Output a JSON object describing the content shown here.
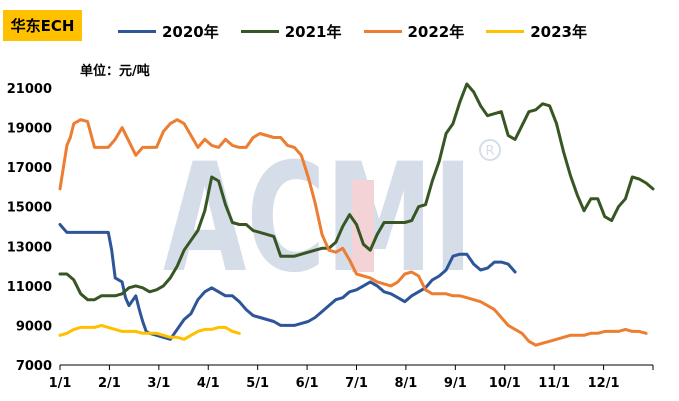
{
  "chart_data": {
    "type": "line",
    "title": "华东ECH",
    "unit": "单位：元/吨",
    "ylim": [
      7000,
      21000
    ],
    "yticks": [
      7000,
      9000,
      11000,
      13000,
      15000,
      17000,
      19000,
      21000
    ],
    "xticks": [
      "1/1",
      "2/1",
      "3/1",
      "4/1",
      "5/1",
      "6/1",
      "7/1",
      "8/1",
      "9/1",
      "10/1",
      "11/1",
      "12/1"
    ],
    "x_unit": "week_of_year",
    "watermark": "ACMI",
    "legend_position": "top",
    "grid": false,
    "colors": {
      "2020": "#2E5597",
      "2021": "#375623",
      "2022": "#ED7D31",
      "2023": "#FFC000"
    },
    "series": [
      {
        "name": "2020年",
        "color": "#2E5597",
        "points": [
          [
            0,
            14100
          ],
          [
            0.5,
            13900
          ],
          [
            1,
            13700
          ],
          [
            2,
            13700
          ],
          [
            3,
            13700
          ],
          [
            4,
            13700
          ],
          [
            5,
            13700
          ],
          [
            6,
            13700
          ],
          [
            7,
            13700
          ],
          [
            7.5,
            12800
          ],
          [
            8,
            11400
          ],
          [
            9,
            11200
          ],
          [
            9.5,
            10400
          ],
          [
            10,
            10000
          ],
          [
            11,
            10500
          ],
          [
            11.5,
            9800
          ],
          [
            12,
            9200
          ],
          [
            12.5,
            8700
          ],
          [
            13,
            8600
          ],
          [
            14,
            8500
          ],
          [
            15,
            8400
          ],
          [
            16,
            8300
          ],
          [
            17,
            8800
          ],
          [
            18,
            9300
          ],
          [
            19,
            9600
          ],
          [
            20,
            10300
          ],
          [
            21,
            10700
          ],
          [
            22,
            10900
          ],
          [
            23,
            10700
          ],
          [
            24,
            10500
          ],
          [
            25,
            10500
          ],
          [
            26,
            10200
          ],
          [
            27,
            9800
          ],
          [
            28,
            9500
          ],
          [
            29,
            9400
          ],
          [
            30,
            9300
          ],
          [
            31,
            9200
          ],
          [
            32,
            9000
          ],
          [
            33,
            9000
          ],
          [
            34,
            9000
          ],
          [
            35,
            9100
          ],
          [
            36,
            9200
          ],
          [
            37,
            9400
          ],
          [
            38,
            9700
          ],
          [
            39,
            10000
          ],
          [
            40,
            10300
          ],
          [
            41,
            10400
          ],
          [
            42,
            10700
          ],
          [
            43,
            10800
          ],
          [
            44,
            11000
          ],
          [
            45,
            11200
          ],
          [
            46,
            11000
          ],
          [
            47,
            10700
          ],
          [
            48,
            10600
          ],
          [
            49,
            10400
          ],
          [
            50,
            10200
          ],
          [
            51,
            10500
          ],
          [
            52,
            10700
          ],
          [
            53,
            10900
          ],
          [
            54,
            11300
          ],
          [
            55,
            11500
          ],
          [
            56,
            11800
          ],
          [
            57,
            12500
          ],
          [
            58,
            12600
          ],
          [
            59,
            12600
          ],
          [
            60,
            12100
          ],
          [
            61,
            11800
          ],
          [
            62,
            11900
          ],
          [
            63,
            12200
          ],
          [
            64,
            12200
          ],
          [
            65,
            12100
          ],
          [
            66,
            11700
          ]
        ]
      },
      {
        "name": "2021年",
        "color": "#375623",
        "points": [
          [
            0,
            11600
          ],
          [
            1,
            11600
          ],
          [
            2,
            11300
          ],
          [
            3,
            10600
          ],
          [
            4,
            10300
          ],
          [
            5,
            10300
          ],
          [
            6,
            10500
          ],
          [
            7,
            10500
          ],
          [
            8,
            10500
          ],
          [
            9,
            10600
          ],
          [
            10,
            10900
          ],
          [
            11,
            11000
          ],
          [
            12,
            10900
          ],
          [
            13,
            10700
          ],
          [
            14,
            10800
          ],
          [
            15,
            11000
          ],
          [
            16,
            11400
          ],
          [
            17,
            12000
          ],
          [
            18,
            12800
          ],
          [
            19,
            13300
          ],
          [
            20,
            13800
          ],
          [
            21,
            14800
          ],
          [
            22,
            16500
          ],
          [
            23,
            16300
          ],
          [
            24,
            15100
          ],
          [
            25,
            14200
          ],
          [
            26,
            14100
          ],
          [
            27,
            14100
          ],
          [
            28,
            13800
          ],
          [
            29,
            13700
          ],
          [
            30,
            13600
          ],
          [
            31,
            13500
          ],
          [
            32,
            12500
          ],
          [
            33,
            12500
          ],
          [
            34,
            12500
          ],
          [
            35,
            12600
          ],
          [
            36,
            12700
          ],
          [
            37,
            12800
          ],
          [
            38,
            12900
          ],
          [
            39,
            12900
          ],
          [
            40,
            13200
          ],
          [
            41,
            14000
          ],
          [
            42,
            14600
          ],
          [
            43,
            14100
          ],
          [
            44,
            13100
          ],
          [
            45,
            12800
          ],
          [
            46,
            13600
          ],
          [
            47,
            14200
          ],
          [
            48,
            14200
          ],
          [
            49,
            14200
          ],
          [
            50,
            14200
          ],
          [
            51,
            14300
          ],
          [
            52,
            15000
          ],
          [
            53,
            15100
          ],
          [
            54,
            16300
          ],
          [
            55,
            17300
          ],
          [
            56,
            18700
          ],
          [
            57,
            19200
          ],
          [
            58,
            20300
          ],
          [
            59,
            21200
          ],
          [
            60,
            20800
          ],
          [
            61,
            20100
          ],
          [
            62,
            19600
          ],
          [
            63,
            19700
          ],
          [
            64,
            19800
          ],
          [
            65,
            18600
          ],
          [
            66,
            18400
          ],
          [
            67,
            19100
          ],
          [
            68,
            19800
          ],
          [
            69,
            19900
          ],
          [
            70,
            20200
          ],
          [
            71,
            20100
          ],
          [
            72,
            19200
          ],
          [
            73,
            17800
          ],
          [
            74,
            16600
          ],
          [
            75,
            15600
          ],
          [
            76,
            14800
          ],
          [
            77,
            15400
          ],
          [
            78,
            15400
          ],
          [
            79,
            14500
          ],
          [
            80,
            14300
          ],
          [
            81,
            15000
          ],
          [
            82,
            15400
          ],
          [
            83,
            16500
          ],
          [
            84,
            16400
          ],
          [
            85,
            16200
          ],
          [
            86,
            15900
          ]
        ]
      },
      {
        "name": "2022年",
        "color": "#ED7D31",
        "points": [
          [
            0,
            15900
          ],
          [
            1,
            18100
          ],
          [
            1.5,
            18500
          ],
          [
            2,
            19200
          ],
          [
            3,
            19400
          ],
          [
            4,
            19300
          ],
          [
            5,
            18000
          ],
          [
            6,
            18000
          ],
          [
            7,
            18000
          ],
          [
            8,
            18400
          ],
          [
            9,
            19000
          ],
          [
            10,
            18300
          ],
          [
            11,
            17600
          ],
          [
            12,
            18000
          ],
          [
            13,
            18000
          ],
          [
            14,
            18000
          ],
          [
            15,
            18800
          ],
          [
            16,
            19200
          ],
          [
            17,
            19400
          ],
          [
            18,
            19200
          ],
          [
            19,
            18600
          ],
          [
            20,
            18000
          ],
          [
            21,
            18400
          ],
          [
            22,
            18100
          ],
          [
            23,
            18000
          ],
          [
            24,
            18400
          ],
          [
            25,
            18100
          ],
          [
            26,
            18000
          ],
          [
            27,
            18000
          ],
          [
            28,
            18500
          ],
          [
            29,
            18700
          ],
          [
            30,
            18600
          ],
          [
            31,
            18500
          ],
          [
            32,
            18500
          ],
          [
            33,
            18100
          ],
          [
            34,
            18000
          ],
          [
            35,
            17600
          ],
          [
            36,
            16500
          ],
          [
            37,
            15200
          ],
          [
            38,
            13600
          ],
          [
            39,
            12800
          ],
          [
            40,
            12700
          ],
          [
            41,
            12900
          ],
          [
            42,
            12300
          ],
          [
            43,
            11600
          ],
          [
            44,
            11500
          ],
          [
            45,
            11400
          ],
          [
            46,
            11200
          ],
          [
            47,
            11100
          ],
          [
            48,
            11000
          ],
          [
            49,
            11200
          ],
          [
            50,
            11600
          ],
          [
            51,
            11700
          ],
          [
            52,
            11500
          ],
          [
            53,
            10800
          ],
          [
            54,
            10600
          ],
          [
            55,
            10600
          ],
          [
            56,
            10600
          ],
          [
            57,
            10500
          ],
          [
            58,
            10500
          ],
          [
            59,
            10400
          ],
          [
            60,
            10300
          ],
          [
            61,
            10200
          ],
          [
            62,
            10000
          ],
          [
            63,
            9800
          ],
          [
            64,
            9400
          ],
          [
            65,
            9000
          ],
          [
            66,
            8800
          ],
          [
            67,
            8600
          ],
          [
            68,
            8200
          ],
          [
            69,
            8000
          ],
          [
            70,
            8100
          ],
          [
            71,
            8200
          ],
          [
            72,
            8300
          ],
          [
            73,
            8400
          ],
          [
            74,
            8500
          ],
          [
            75,
            8500
          ],
          [
            76,
            8500
          ],
          [
            77,
            8600
          ],
          [
            78,
            8600
          ],
          [
            79,
            8700
          ],
          [
            80,
            8700
          ],
          [
            81,
            8700
          ],
          [
            82,
            8800
          ],
          [
            83,
            8700
          ],
          [
            84,
            8700
          ],
          [
            85,
            8600
          ]
        ]
      },
      {
        "name": "2023年",
        "color": "#FFC000",
        "points": [
          [
            0,
            8500
          ],
          [
            1,
            8600
          ],
          [
            2,
            8800
          ],
          [
            3,
            8900
          ],
          [
            4,
            8900
          ],
          [
            5,
            8900
          ],
          [
            6,
            9000
          ],
          [
            7,
            8900
          ],
          [
            8,
            8800
          ],
          [
            9,
            8700
          ],
          [
            10,
            8700
          ],
          [
            11,
            8700
          ],
          [
            12,
            8600
          ],
          [
            13,
            8600
          ],
          [
            14,
            8600
          ],
          [
            15,
            8500
          ],
          [
            16,
            8400
          ],
          [
            17,
            8400
          ],
          [
            18,
            8300
          ],
          [
            19,
            8500
          ],
          [
            20,
            8700
          ],
          [
            21,
            8800
          ],
          [
            22,
            8800
          ],
          [
            23,
            8900
          ],
          [
            24,
            8900
          ],
          [
            25,
            8700
          ],
          [
            26,
            8600
          ]
        ]
      }
    ]
  }
}
